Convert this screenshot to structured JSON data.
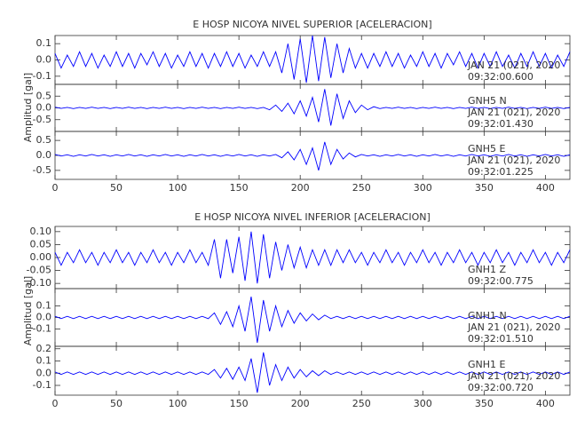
{
  "chart_data": [
    {
      "type": "line",
      "title": "E HOSP NICOYA NIVEL SUPERIOR [ACELERACION]",
      "y_label": "Amplitud [gal]",
      "x": [
        0,
        5,
        10,
        15,
        20,
        25,
        30,
        35,
        40,
        45,
        50,
        55,
        60,
        65,
        70,
        75,
        80,
        85,
        90,
        95,
        100,
        105,
        110,
        115,
        120,
        125,
        130,
        135,
        140,
        145,
        150,
        155,
        160,
        165,
        170,
        175,
        180,
        185,
        190,
        195,
        200,
        205,
        210,
        215,
        220,
        225,
        230,
        235,
        240,
        245,
        250,
        255,
        260,
        265,
        270,
        275,
        280,
        285,
        290,
        295,
        300,
        305,
        310,
        315,
        320,
        325,
        330,
        335,
        340,
        345,
        350,
        355,
        360,
        365,
        370,
        375,
        380,
        385,
        390,
        395,
        400,
        405,
        410,
        415,
        420
      ],
      "xlim": [
        0,
        420
      ],
      "xticks": [
        0,
        50,
        100,
        150,
        200,
        250,
        300,
        350,
        400
      ],
      "panels": [
        {
          "ylim": [
            -0.15,
            0.15
          ],
          "yticks": [
            -0.1,
            {
              "value": 0,
              "label": "0.0"
            },
            0.1
          ],
          "annotations": [
            "JAN 21 (021), 2020",
            "09:32:00.600"
          ],
          "series": [
            {
              "color": "#0000ff",
              "values": [
                0.04,
                -0.05,
                0.03,
                -0.04,
                0.05,
                -0.04,
                0.04,
                -0.05,
                0.03,
                -0.04,
                0.05,
                -0.04,
                0.04,
                -0.05,
                0.04,
                -0.03,
                0.05,
                -0.04,
                0.04,
                -0.05,
                0.03,
                -0.04,
                0.05,
                -0.04,
                0.04,
                -0.05,
                0.04,
                -0.04,
                0.05,
                -0.04,
                0.04,
                -0.05,
                0.03,
                -0.04,
                0.05,
                -0.04,
                0.05,
                -0.08,
                0.1,
                -0.12,
                0.13,
                -0.14,
                0.15,
                -0.13,
                0.14,
                -0.11,
                0.1,
                -0.08,
                0.07,
                -0.05,
                0.04,
                -0.05,
                0.04,
                -0.04,
                0.05,
                -0.04,
                0.04,
                -0.05,
                0.03,
                -0.04,
                0.05,
                -0.04,
                0.04,
                -0.05,
                0.04,
                -0.03,
                0.05,
                -0.04,
                0.04,
                -0.05,
                0.04,
                -0.04,
                0.05,
                -0.04,
                0.03,
                -0.05,
                0.04,
                -0.04,
                0.05,
                -0.04,
                0.04,
                -0.05,
                0.03,
                -0.04,
                0.05
              ]
            }
          ]
        },
        {
          "ylim": [
            -1.0,
            1.0
          ],
          "yticks": [
            -0.5,
            {
              "value": 0,
              "label": "0.0"
            },
            0.5
          ],
          "annotations": [
            "GNH5   N",
            "JAN 21 (021), 2020",
            "09:32:01.430"
          ],
          "series": [
            {
              "color": "#0000ff",
              "values": [
                0.03,
                -0.02,
                0.02,
                -0.03,
                0.02,
                -0.02,
                0.03,
                -0.02,
                0.02,
                -0.03,
                0.02,
                -0.02,
                0.03,
                -0.02,
                0.02,
                -0.03,
                0.02,
                -0.02,
                0.03,
                -0.02,
                0.02,
                -0.03,
                0.02,
                -0.02,
                0.03,
                -0.02,
                0.02,
                -0.03,
                0.02,
                -0.02,
                0.03,
                -0.02,
                0.02,
                -0.03,
                0.02,
                -0.08,
                0.12,
                -0.15,
                0.2,
                -0.25,
                0.3,
                -0.35,
                0.45,
                -0.6,
                0.8,
                -0.75,
                0.6,
                -0.45,
                0.3,
                -0.2,
                0.12,
                -0.08,
                0.05,
                -0.03,
                0.02,
                -0.02,
                0.03,
                -0.02,
                0.02,
                -0.03,
                0.02,
                -0.02,
                0.03,
                -0.02,
                0.02,
                -0.03,
                0.02,
                -0.02,
                0.03,
                -0.02,
                0.02,
                -0.03,
                0.02,
                -0.02,
                0.03,
                -0.02,
                0.02,
                -0.03,
                0.02,
                -0.02,
                0.03,
                -0.02,
                0.02,
                -0.03,
                0.02
              ]
            }
          ]
        },
        {
          "ylim": [
            -0.8,
            0.8
          ],
          "yticks": [
            -0.5,
            {
              "value": 0,
              "label": "0.0"
            },
            0.5
          ],
          "annotations": [
            "GNH5   E",
            "JAN 21 (021), 2020",
            "09:32:01.225"
          ],
          "series": [
            {
              "color": "#0000ff",
              "values": [
                0.03,
                -0.02,
                0.02,
                -0.03,
                0.02,
                -0.02,
                0.03,
                -0.02,
                0.02,
                -0.03,
                0.02,
                -0.02,
                0.03,
                -0.02,
                0.02,
                -0.03,
                0.02,
                -0.02,
                0.03,
                -0.02,
                0.02,
                -0.03,
                0.02,
                -0.02,
                0.03,
                -0.02,
                0.02,
                -0.03,
                0.02,
                -0.02,
                0.03,
                -0.02,
                0.02,
                -0.03,
                0.02,
                -0.02,
                0.03,
                -0.08,
                0.12,
                -0.15,
                0.2,
                -0.3,
                0.25,
                -0.5,
                0.45,
                -0.3,
                0.2,
                -0.12,
                0.08,
                -0.05,
                0.03,
                -0.02,
                0.02,
                -0.03,
                0.02,
                -0.02,
                0.03,
                -0.02,
                0.02,
                -0.03,
                0.02,
                -0.02,
                0.03,
                -0.02,
                0.02,
                -0.03,
                0.02,
                -0.02,
                0.03,
                -0.02,
                0.02,
                -0.03,
                0.02,
                -0.02,
                0.03,
                -0.02,
                0.02,
                -0.03,
                0.02,
                -0.02,
                0.03,
                -0.02,
                0.02,
                -0.03,
                0.02
              ]
            }
          ]
        }
      ]
    },
    {
      "type": "line",
      "title": "E HOSP NICOYA NIVEL INFERIOR [ACELERACION]",
      "y_label": "Amplitud [gal]",
      "x": [
        0,
        5,
        10,
        15,
        20,
        25,
        30,
        35,
        40,
        45,
        50,
        55,
        60,
        65,
        70,
        75,
        80,
        85,
        90,
        95,
        100,
        105,
        110,
        115,
        120,
        125,
        130,
        135,
        140,
        145,
        150,
        155,
        160,
        165,
        170,
        175,
        180,
        185,
        190,
        195,
        200,
        205,
        210,
        215,
        220,
        225,
        230,
        235,
        240,
        245,
        250,
        255,
        260,
        265,
        270,
        275,
        280,
        285,
        290,
        295,
        300,
        305,
        310,
        315,
        320,
        325,
        330,
        335,
        340,
        345,
        350,
        355,
        360,
        365,
        370,
        375,
        380,
        385,
        390,
        395,
        400,
        405,
        410,
        415,
        420
      ],
      "xlim": [
        0,
        420
      ],
      "xticks": [
        0,
        50,
        100,
        150,
        200,
        250,
        300,
        350,
        400
      ],
      "panels": [
        {
          "ylim": [
            -0.12,
            0.12
          ],
          "yticks": [
            {
              "value": -0.1,
              "label": "-0.10"
            },
            -0.05,
            {
              "value": 0,
              "label": "0.00"
            },
            0.05,
            {
              "value": 0.1,
              "label": "0.10"
            }
          ],
          "annotations": [
            "GNH1   Z",
            "09:32:00.775"
          ],
          "series": [
            {
              "color": "#0000ff",
              "values": [
                0.02,
                -0.03,
                0.02,
                -0.02,
                0.03,
                -0.02,
                0.02,
                -0.03,
                0.02,
                -0.02,
                0.03,
                -0.02,
                0.02,
                -0.03,
                0.02,
                -0.02,
                0.03,
                -0.02,
                0.02,
                -0.03,
                0.02,
                -0.02,
                0.03,
                -0.02,
                0.02,
                -0.03,
                0.07,
                -0.08,
                0.07,
                -0.06,
                0.08,
                -0.09,
                0.1,
                -0.1,
                0.09,
                -0.08,
                0.06,
                -0.05,
                0.05,
                -0.04,
                0.04,
                -0.04,
                0.03,
                -0.03,
                0.03,
                -0.03,
                0.03,
                -0.02,
                0.03,
                -0.02,
                0.02,
                -0.03,
                0.02,
                -0.02,
                0.03,
                -0.02,
                0.02,
                -0.03,
                0.02,
                -0.02,
                0.03,
                -0.02,
                0.02,
                -0.03,
                0.02,
                -0.02,
                0.03,
                -0.02,
                0.02,
                -0.03,
                0.02,
                -0.02,
                0.03,
                -0.02,
                0.02,
                -0.03,
                0.02,
                -0.02,
                0.03,
                -0.02,
                0.02,
                -0.03,
                0.02,
                -0.02,
                0.03
              ]
            }
          ]
        },
        {
          "ylim": [
            -0.25,
            0.25
          ],
          "yticks": [
            -0.1,
            {
              "value": 0,
              "label": "0.0"
            },
            0.1
          ],
          "annotations": [
            "GNH1   N",
            "JAN 21 (021), 2020",
            "09:32:01.510"
          ],
          "series": [
            {
              "color": "#0000ff",
              "values": [
                0.01,
                -0.01,
                0.01,
                -0.01,
                0.01,
                -0.01,
                0.01,
                -0.01,
                0.01,
                -0.01,
                0.01,
                -0.01,
                0.01,
                -0.01,
                0.01,
                -0.01,
                0.01,
                -0.01,
                0.01,
                -0.01,
                0.01,
                -0.01,
                0.01,
                -0.01,
                0.01,
                -0.01,
                0.04,
                -0.06,
                0.05,
                -0.08,
                0.1,
                -0.12,
                0.18,
                -0.22,
                0.15,
                -0.12,
                0.1,
                -0.08,
                0.06,
                -0.05,
                0.04,
                -0.03,
                0.03,
                -0.02,
                0.02,
                -0.01,
                0.01,
                -0.01,
                0.01,
                -0.01,
                0.01,
                -0.01,
                0.01,
                -0.01,
                0.01,
                -0.01,
                0.01,
                -0.01,
                0.01,
                -0.01,
                0.01,
                -0.01,
                0.01,
                -0.01,
                0.01,
                -0.01,
                0.01,
                -0.01,
                0.01,
                -0.01,
                0.01,
                -0.01,
                0.01,
                -0.01,
                0.01,
                -0.01,
                0.01,
                -0.01,
                0.01,
                -0.01,
                0.01,
                -0.01,
                0.01,
                -0.01,
                0.01
              ]
            }
          ]
        },
        {
          "ylim": [
            -0.18,
            0.22
          ],
          "yticks": [
            -0.1,
            {
              "value": 0,
              "label": "0.0"
            },
            0.1,
            0.2
          ],
          "annotations": [
            "GNH1   E",
            "JAN 21 (021), 2020",
            "09:32:00.720"
          ],
          "series": [
            {
              "color": "#0000ff",
              "values": [
                0.01,
                -0.01,
                0.01,
                -0.01,
                0.01,
                -0.01,
                0.01,
                -0.01,
                0.01,
                -0.01,
                0.01,
                -0.01,
                0.01,
                -0.01,
                0.01,
                -0.01,
                0.01,
                -0.01,
                0.01,
                -0.01,
                0.01,
                -0.01,
                0.01,
                -0.01,
                0.01,
                -0.01,
                0.03,
                -0.04,
                0.04,
                -0.05,
                0.05,
                -0.06,
                0.12,
                -0.16,
                0.17,
                -0.1,
                0.07,
                -0.06,
                0.05,
                -0.04,
                0.03,
                -0.03,
                0.02,
                -0.02,
                0.02,
                -0.01,
                0.01,
                -0.01,
                0.01,
                -0.01,
                0.01,
                -0.01,
                0.01,
                -0.01,
                0.01,
                -0.01,
                0.01,
                -0.01,
                0.01,
                -0.01,
                0.01,
                -0.01,
                0.01,
                -0.01,
                0.01,
                -0.01,
                0.01,
                -0.01,
                0.01,
                -0.01,
                0.01,
                -0.01,
                0.01,
                -0.01,
                0.01,
                -0.01,
                0.01,
                -0.01,
                0.01,
                -0.01,
                0.01,
                -0.01,
                0.01,
                -0.01,
                0.01
              ]
            }
          ]
        }
      ]
    }
  ]
}
